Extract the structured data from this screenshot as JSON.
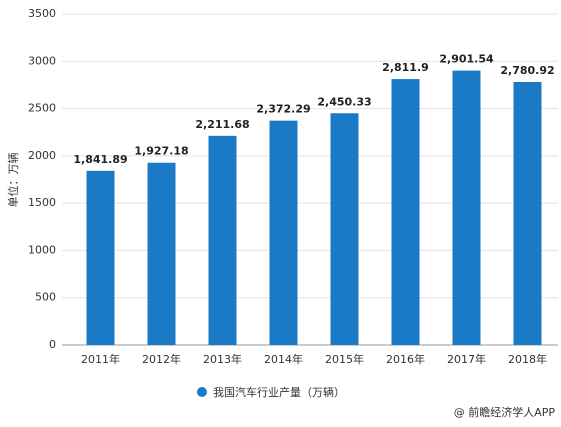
{
  "chart_data": {
    "type": "bar",
    "y_label": "单位：万辆",
    "categories": [
      "2011年",
      "2012年",
      "2013年",
      "2014年",
      "2015年",
      "2016年",
      "2017年",
      "2018年"
    ],
    "series": [
      {
        "name": "我国汽车行业产量（万辆）",
        "color": "#1a7ac6",
        "values": [
          1841.89,
          1927.18,
          2211.68,
          2372.29,
          2450.33,
          2811.9,
          2901.54,
          2780.92
        ],
        "value_labels": [
          "1,841.89",
          "1,927.18",
          "2,211.68",
          "2,372.29",
          "2,450.33",
          "2,811.9",
          "2,901.54",
          "2,780.92"
        ]
      }
    ],
    "ylim": [
      0,
      3500
    ],
    "yticks": [
      0,
      500,
      1000,
      1500,
      2000,
      2500,
      3000,
      3500
    ],
    "grid": true,
    "legend": "bottom",
    "footer": "@ 前瞻经济学人APP"
  }
}
